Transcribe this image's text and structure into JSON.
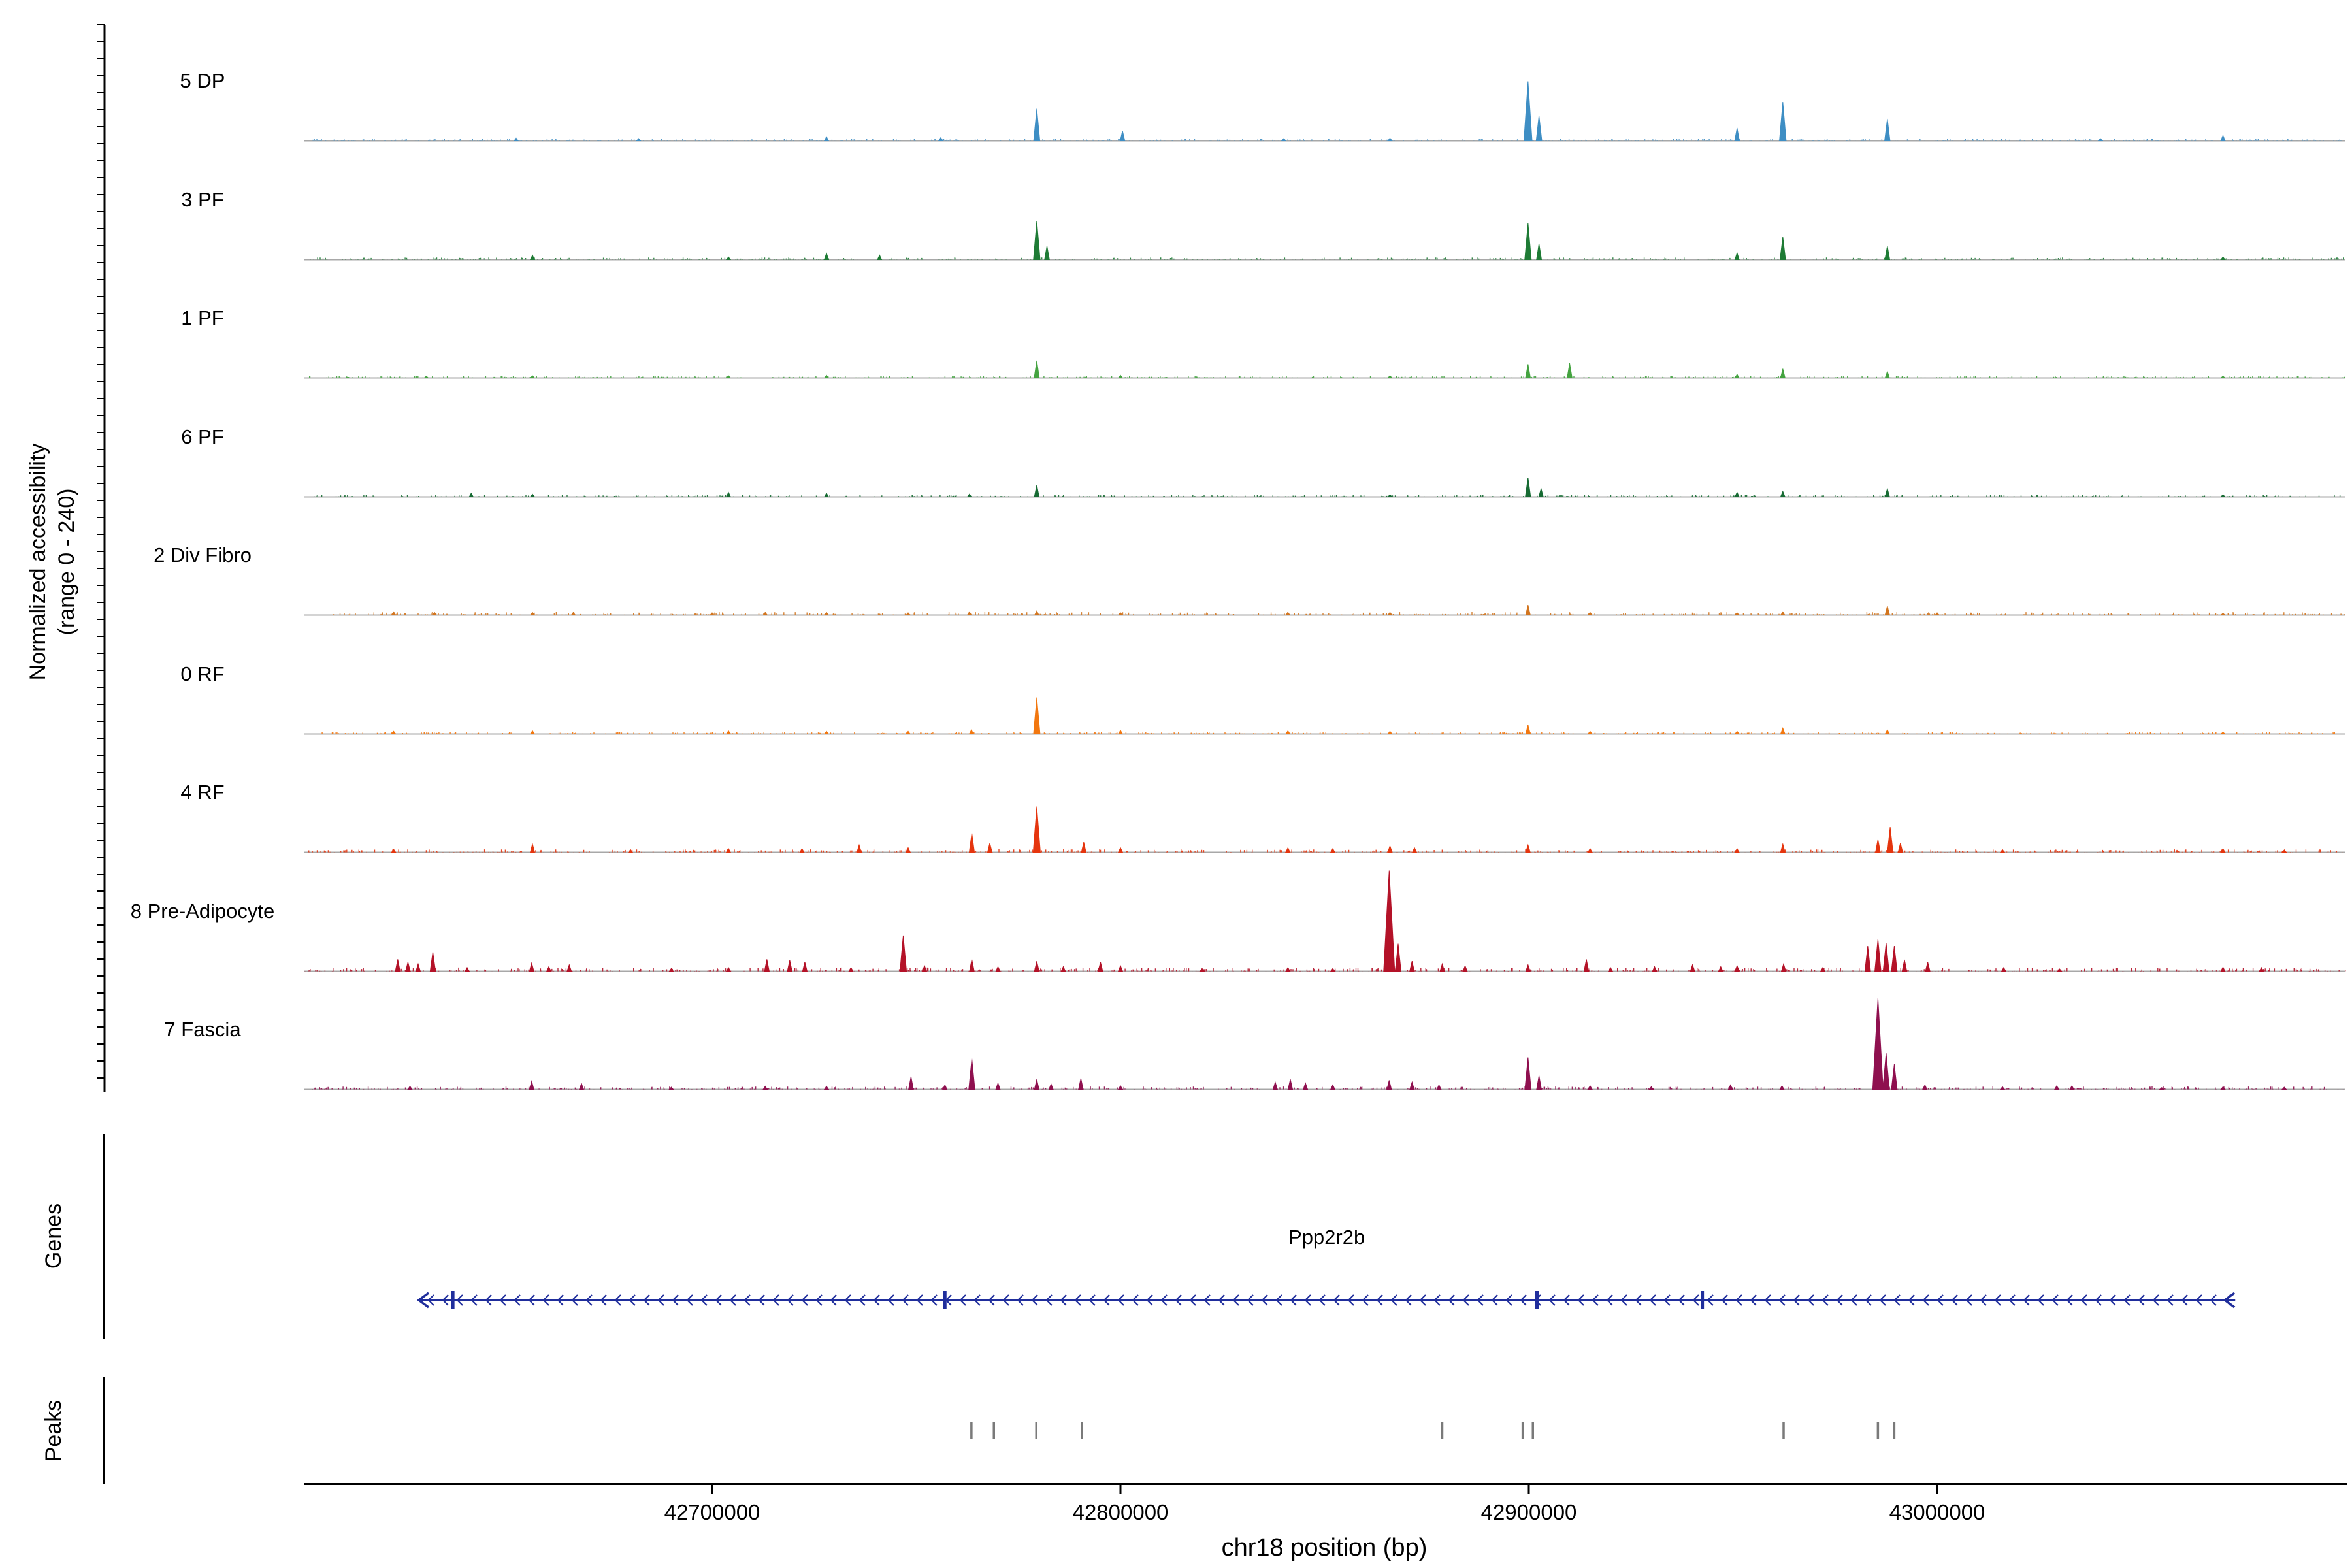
{
  "figure": {
    "ylabel": "Normalized accessibility\n(range 0 - 240)",
    "xlabel": "chr18 position (bp)"
  },
  "chart_data": {
    "type": "area",
    "title": "",
    "xlabel": "chr18 position (bp)",
    "ylabel": "Normalized accessibility (range 0 - 240)",
    "chromosome": "chr18",
    "x_range": [
      42600000,
      43100000
    ],
    "y_range_per_track": [
      0,
      240
    ],
    "grid": false,
    "legend_position": "none",
    "x_ticks": [
      {
        "bp": 42700000,
        "label": "42700000"
      },
      {
        "bp": 42800000,
        "label": "42800000"
      },
      {
        "bp": 42900000,
        "label": "42900000"
      },
      {
        "bp": 43000000,
        "label": "43000000"
      }
    ],
    "series": [
      {
        "name": "5 DP",
        "color": "#3E8EC4",
        "noise_level": 3,
        "peaks": [
          [
            42652000,
            6
          ],
          [
            42682000,
            5
          ],
          [
            42728000,
            9
          ],
          [
            42756000,
            7
          ],
          [
            42779500,
            70
          ],
          [
            42800500,
            22
          ],
          [
            42840000,
            5
          ],
          [
            42866000,
            6
          ],
          [
            42899800,
            130
          ],
          [
            42902500,
            55
          ],
          [
            42951000,
            28
          ],
          [
            42962200,
            85
          ],
          [
            42987800,
            48
          ],
          [
            43040000,
            5
          ],
          [
            43070000,
            12
          ]
        ]
      },
      {
        "name": "3 PF",
        "color": "#1E7B35",
        "noise_level": 3,
        "peaks": [
          [
            42656000,
            10
          ],
          [
            42704000,
            6
          ],
          [
            42728000,
            14
          ],
          [
            42741000,
            10
          ],
          [
            42779500,
            85
          ],
          [
            42782000,
            30
          ],
          [
            42899800,
            80
          ],
          [
            42902500,
            35
          ],
          [
            42951000,
            15
          ],
          [
            42962200,
            50
          ],
          [
            42987800,
            30
          ],
          [
            43070000,
            6
          ]
        ]
      },
      {
        "name": "1 PF",
        "color": "#44A340",
        "noise_level": 3,
        "peaks": [
          [
            42630000,
            4
          ],
          [
            42656000,
            5
          ],
          [
            42704000,
            5
          ],
          [
            42728000,
            6
          ],
          [
            42779500,
            38
          ],
          [
            42800000,
            6
          ],
          [
            42866000,
            5
          ],
          [
            42899800,
            30
          ],
          [
            42910000,
            32
          ],
          [
            42951000,
            8
          ],
          [
            42962200,
            20
          ],
          [
            42987800,
            14
          ],
          [
            43070000,
            4
          ]
        ]
      },
      {
        "name": "6 PF",
        "color": "#176B33",
        "noise_level": 3,
        "peaks": [
          [
            42641000,
            8
          ],
          [
            42656000,
            6
          ],
          [
            42704000,
            10
          ],
          [
            42728000,
            8
          ],
          [
            42763000,
            6
          ],
          [
            42779500,
            26
          ],
          [
            42866000,
            5
          ],
          [
            42899800,
            42
          ],
          [
            42903000,
            18
          ],
          [
            42951000,
            10
          ],
          [
            42962200,
            12
          ],
          [
            42987800,
            18
          ],
          [
            43070000,
            5
          ]
        ]
      },
      {
        "name": "2 Div Fibro",
        "color": "#D2751F",
        "noise_level": 4,
        "peaks": [
          [
            42622000,
            7
          ],
          [
            42632000,
            6
          ],
          [
            42656000,
            6
          ],
          [
            42666000,
            6
          ],
          [
            42700000,
            5
          ],
          [
            42713000,
            6
          ],
          [
            42728000,
            6
          ],
          [
            42748000,
            5
          ],
          [
            42763000,
            7
          ],
          [
            42779500,
            9
          ],
          [
            42800000,
            5
          ],
          [
            42841000,
            6
          ],
          [
            42866000,
            6
          ],
          [
            42899800,
            22
          ],
          [
            42915000,
            6
          ],
          [
            42951000,
            5
          ],
          [
            42962200,
            7
          ],
          [
            42987800,
            20
          ],
          [
            43000000,
            5
          ],
          [
            43070000,
            4
          ]
        ]
      },
      {
        "name": "0 RF",
        "color": "#F2770F",
        "noise_level": 3,
        "peaks": [
          [
            42622000,
            6
          ],
          [
            42656000,
            7
          ],
          [
            42704000,
            7
          ],
          [
            42728000,
            6
          ],
          [
            42748000,
            6
          ],
          [
            42763500,
            9
          ],
          [
            42779500,
            80
          ],
          [
            42800000,
            8
          ],
          [
            42841000,
            7
          ],
          [
            42866000,
            6
          ],
          [
            42899800,
            20
          ],
          [
            42915000,
            6
          ],
          [
            42951000,
            6
          ],
          [
            42962200,
            13
          ],
          [
            42987800,
            9
          ],
          [
            43070000,
            4
          ]
        ]
      },
      {
        "name": "4 RF",
        "color": "#E5350E",
        "noise_level": 4,
        "peaks": [
          [
            42622000,
            6
          ],
          [
            42656000,
            18
          ],
          [
            42680000,
            6
          ],
          [
            42704000,
            8
          ],
          [
            42722000,
            8
          ],
          [
            42736000,
            16
          ],
          [
            42748000,
            10
          ],
          [
            42763600,
            42
          ],
          [
            42768000,
            20
          ],
          [
            42779500,
            100
          ],
          [
            42791000,
            22
          ],
          [
            42800000,
            10
          ],
          [
            42841000,
            10
          ],
          [
            42852000,
            8
          ],
          [
            42866000,
            14
          ],
          [
            42872000,
            10
          ],
          [
            42899800,
            16
          ],
          [
            42915000,
            8
          ],
          [
            42951000,
            8
          ],
          [
            42962200,
            18
          ],
          [
            42985500,
            28
          ],
          [
            42988500,
            55
          ],
          [
            42991000,
            20
          ],
          [
            43016000,
            6
          ],
          [
            43070000,
            8
          ],
          [
            43085000,
            5
          ]
        ]
      },
      {
        "name": "8 Pre-Adipocyte",
        "color": "#B41228",
        "noise_level": 5,
        "peaks": [
          [
            42623000,
            26
          ],
          [
            42625500,
            20
          ],
          [
            42628000,
            16
          ],
          [
            42631600,
            42
          ],
          [
            42640000,
            8
          ],
          [
            42655800,
            18
          ],
          [
            42660000,
            10
          ],
          [
            42665000,
            14
          ],
          [
            42690000,
            6
          ],
          [
            42704000,
            8
          ],
          [
            42713400,
            26
          ],
          [
            42719000,
            24
          ],
          [
            42722700,
            20
          ],
          [
            42734000,
            8
          ],
          [
            42746800,
            78
          ],
          [
            42752000,
            12
          ],
          [
            42763600,
            26
          ],
          [
            42770000,
            10
          ],
          [
            42779500,
            22
          ],
          [
            42786000,
            10
          ],
          [
            42795100,
            20
          ],
          [
            42800000,
            12
          ],
          [
            42820000,
            6
          ],
          [
            42841000,
            8
          ],
          [
            42852000,
            6
          ],
          [
            42865800,
            220
          ],
          [
            42868000,
            60
          ],
          [
            42871400,
            22
          ],
          [
            42878800,
            16
          ],
          [
            42884400,
            12
          ],
          [
            42899800,
            14
          ],
          [
            42914100,
            26
          ],
          [
            42920000,
            8
          ],
          [
            42930800,
            10
          ],
          [
            42940100,
            14
          ],
          [
            42947000,
            10
          ],
          [
            42951000,
            12
          ],
          [
            42962400,
            16
          ],
          [
            42972000,
            8
          ],
          [
            42983000,
            55
          ],
          [
            42985500,
            70
          ],
          [
            42987500,
            62
          ],
          [
            42989500,
            55
          ],
          [
            42992000,
            25
          ],
          [
            42997700,
            20
          ],
          [
            43016300,
            8
          ],
          [
            43030000,
            5
          ],
          [
            43070000,
            9
          ],
          [
            43079400,
            8
          ]
        ]
      },
      {
        "name": "7 Fascia",
        "color": "#8F104F",
        "noise_level": 4,
        "peaks": [
          [
            42626000,
            7
          ],
          [
            42655800,
            18
          ],
          [
            42668000,
            13
          ],
          [
            42690000,
            5
          ],
          [
            42713000,
            7
          ],
          [
            42728000,
            7
          ],
          [
            42748700,
            28
          ],
          [
            42757000,
            10
          ],
          [
            42763600,
            68
          ],
          [
            42770000,
            14
          ],
          [
            42779500,
            22
          ],
          [
            42783000,
            12
          ],
          [
            42790300,
            24
          ],
          [
            42800000,
            8
          ],
          [
            42837900,
            16
          ],
          [
            42841600,
            22
          ],
          [
            42845300,
            14
          ],
          [
            42852000,
            10
          ],
          [
            42865800,
            20
          ],
          [
            42871400,
            16
          ],
          [
            42878000,
            10
          ],
          [
            42899800,
            70
          ],
          [
            42902500,
            30
          ],
          [
            42915000,
            8
          ],
          [
            42930000,
            6
          ],
          [
            42949400,
            10
          ],
          [
            42962000,
            8
          ],
          [
            42985500,
            200
          ],
          [
            42987500,
            80
          ],
          [
            42989500,
            55
          ],
          [
            42997000,
            10
          ],
          [
            43016000,
            6
          ],
          [
            43029300,
            8
          ],
          [
            43033000,
            8
          ],
          [
            43055000,
            4
          ],
          [
            43070000,
            6
          ],
          [
            43085000,
            5
          ]
        ]
      }
    ],
    "genes": {
      "label": "Genes",
      "items": [
        {
          "name": "Ppp2r2b",
          "start": 42628000,
          "end": 43073000,
          "strand": "-",
          "color": "#202E9C",
          "exon_marks": [
            42636500,
            42757000,
            42902000,
            42942500
          ]
        }
      ]
    },
    "peaks_track": {
      "label": "Peaks",
      "color": "#7A7A7A",
      "positions": [
        42763500,
        42769000,
        42779400,
        42790600,
        42878800,
        42898500,
        42901000,
        42962400,
        42985500,
        42989500
      ]
    }
  }
}
